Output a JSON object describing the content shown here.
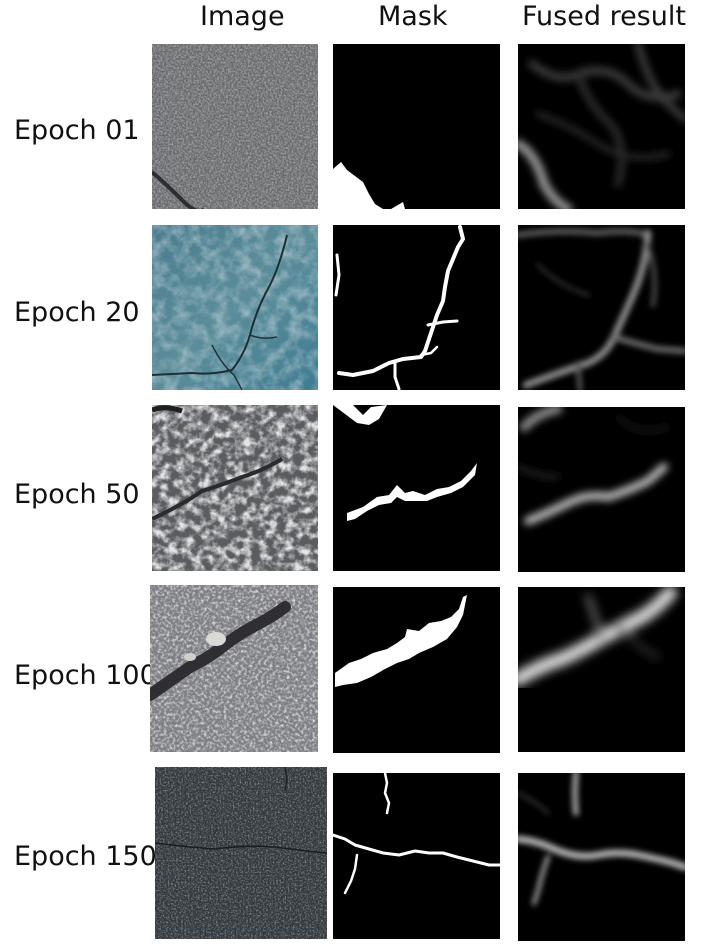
{
  "headers": {
    "image": "Image",
    "mask": "Mask",
    "fused": "Fused result"
  },
  "rows": [
    {
      "label": "Epoch 01"
    },
    {
      "label": "Epoch 20"
    },
    {
      "label": "Epoch 50"
    },
    {
      "label": "Epoch 100"
    },
    {
      "label": "Epoch 150"
    }
  ]
}
